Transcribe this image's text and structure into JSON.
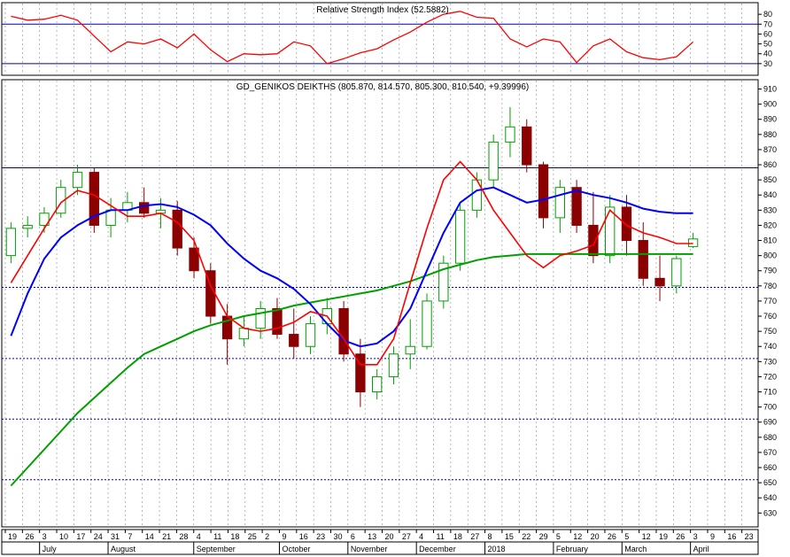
{
  "rsi_panel": {
    "title": "Relative Strength Index (52.5882)",
    "ylim": [
      20,
      90
    ],
    "yticks": [
      30,
      40,
      50,
      60,
      70,
      80
    ],
    "levels": [
      70,
      30
    ]
  },
  "price_panel": {
    "title": "GD_GENIKOS DEIKTHS (805.870, 814.570, 805.300, 810.540, +9.39996)",
    "ylim": [
      622,
      915
    ],
    "yticks": [
      630,
      640,
      650,
      660,
      670,
      680,
      690,
      700,
      710,
      720,
      730,
      740,
      750,
      760,
      770,
      780,
      790,
      800,
      810,
      820,
      830,
      840,
      850,
      860,
      870,
      880,
      890,
      900,
      910
    ],
    "levels": [
      858,
      779,
      732,
      692,
      652
    ]
  },
  "x_axis": {
    "day_labels": [
      "19",
      "26",
      "3",
      "10",
      "17",
      "24",
      "31",
      "7",
      "14",
      "21",
      "28",
      "4",
      "11",
      "18",
      "25",
      "2",
      "9",
      "16",
      "23",
      "30",
      "6",
      "13",
      "20",
      "27",
      "4",
      "11",
      "18",
      "27",
      "8",
      "15",
      "22",
      "29",
      "5",
      "12",
      "20",
      "26",
      "5",
      "12",
      "19",
      "26",
      "3",
      "9",
      "16",
      "23"
    ],
    "month_labels": [
      {
        "label": "July",
        "index": 2
      },
      {
        "label": "August",
        "index": 6
      },
      {
        "label": "September",
        "index": 11
      },
      {
        "label": "October",
        "index": 16
      },
      {
        "label": "November",
        "index": 20
      },
      {
        "label": "December",
        "index": 24
      },
      {
        "label": "2018",
        "index": 28
      },
      {
        "label": "February",
        "index": 32
      },
      {
        "label": "March",
        "index": 36
      },
      {
        "label": "April",
        "index": 40
      }
    ]
  },
  "colors": {
    "rsi": "#ff0000",
    "ma_fast": "#ff0000",
    "ma_mid": "#0000ff",
    "ma_slow": "#00a000",
    "candle_up": "#00a000",
    "candle_down": "#8b0000",
    "level_line": "#0000aa",
    "grid": "#888888"
  },
  "chart_data": [
    {
      "type": "line",
      "title": "Relative Strength Index (52.5882)",
      "x": [
        0,
        1,
        2,
        3,
        4,
        5,
        6,
        7,
        8,
        9,
        10,
        11,
        12,
        13,
        14,
        15,
        16,
        17,
        18,
        19,
        20,
        21,
        22,
        23,
        24,
        25,
        26,
        27,
        28,
        29,
        30,
        31,
        32,
        33,
        34,
        35,
        36,
        37,
        38,
        39,
        40,
        41
      ],
      "series": [
        {
          "values": [
            78,
            74,
            75,
            79,
            74,
            58,
            42,
            52,
            50,
            55,
            46,
            60,
            44,
            32,
            40,
            39,
            40,
            52,
            48,
            30,
            35,
            41,
            45,
            54,
            62,
            72,
            80,
            83,
            77,
            76,
            55,
            47,
            55,
            52,
            31,
            48,
            55,
            42,
            36,
            34,
            37,
            52
          ]
        }
      ],
      "levels": [
        70,
        30
      ],
      "ylim": [
        20,
        90
      ]
    },
    {
      "type": "line",
      "title": "GD_GENIKOS DEIKTHS (805.870, 814.570, 805.300, 810.540, +9.39996)",
      "x": [
        0,
        1,
        2,
        3,
        4,
        5,
        6,
        7,
        8,
        9,
        10,
        11,
        12,
        13,
        14,
        15,
        16,
        17,
        18,
        19,
        20,
        21,
        22,
        23,
        24,
        25,
        26,
        27,
        28,
        29,
        30,
        31,
        32,
        33,
        34,
        35,
        36,
        37,
        38,
        39,
        40,
        41
      ],
      "ylim": [
        622,
        915
      ],
      "candles": [
        [
          800,
          822,
          795,
          818
        ],
        [
          818,
          826,
          812,
          820
        ],
        [
          820,
          832,
          815,
          828
        ],
        [
          828,
          850,
          825,
          845
        ],
        [
          845,
          860,
          840,
          855
        ],
        [
          855,
          858,
          815,
          820
        ],
        [
          820,
          838,
          812,
          830
        ],
        [
          830,
          842,
          822,
          835
        ],
        [
          835,
          845,
          825,
          828
        ],
        [
          828,
          838,
          818,
          830
        ],
        [
          830,
          836,
          800,
          805
        ],
        [
          805,
          812,
          785,
          790
        ],
        [
          790,
          795,
          755,
          760
        ],
        [
          760,
          768,
          728,
          745
        ],
        [
          745,
          760,
          740,
          752
        ],
        [
          752,
          770,
          745,
          765
        ],
        [
          765,
          772,
          745,
          748
        ],
        [
          748,
          765,
          732,
          740
        ],
        [
          740,
          760,
          735,
          755
        ],
        [
          755,
          772,
          748,
          765
        ],
        [
          765,
          770,
          730,
          735
        ],
        [
          735,
          745,
          700,
          710
        ],
        [
          710,
          725,
          705,
          720
        ],
        [
          720,
          740,
          715,
          735
        ],
        [
          735,
          758,
          725,
          740
        ],
        [
          740,
          775,
          738,
          770
        ],
        [
          770,
          800,
          765,
          795
        ],
        [
          795,
          835,
          790,
          830
        ],
        [
          830,
          855,
          825,
          850
        ],
        [
          850,
          880,
          845,
          875
        ],
        [
          875,
          898,
          865,
          885
        ],
        [
          885,
          890,
          855,
          860
        ],
        [
          860,
          862,
          818,
          825
        ],
        [
          825,
          850,
          815,
          845
        ],
        [
          845,
          850,
          815,
          820
        ],
        [
          820,
          842,
          795,
          800
        ],
        [
          800,
          840,
          795,
          832
        ],
        [
          832,
          840,
          800,
          810
        ],
        [
          810,
          822,
          780,
          785
        ],
        [
          785,
          800,
          770,
          780
        ],
        [
          780,
          800,
          775,
          798
        ],
        [
          806,
          815,
          805,
          811
        ]
      ],
      "series": [
        {
          "values": [
            782,
            800,
            818,
            835,
            843,
            840,
            833,
            826,
            826,
            828,
            822,
            810,
            780,
            760,
            752,
            750,
            752,
            756,
            763,
            760,
            745,
            728,
            728,
            745,
            782,
            818,
            850,
            862,
            850,
            830,
            815,
            800,
            792,
            800,
            803,
            807,
            830,
            820,
            815,
            812,
            808,
            808
          ]
        },
        {
          "values": [
            747,
            775,
            798,
            812,
            820,
            826,
            830,
            830,
            833,
            834,
            832,
            827,
            820,
            808,
            798,
            790,
            785,
            778,
            768,
            755,
            744,
            740,
            742,
            750,
            765,
            790,
            815,
            835,
            843,
            845,
            840,
            835,
            837,
            840,
            843,
            840,
            838,
            835,
            831,
            829,
            828,
            828
          ]
        },
        {
          "values": [
            648,
            660,
            672,
            684,
            696,
            706,
            716,
            726,
            735,
            740,
            745,
            750,
            754,
            757,
            760,
            762,
            764,
            767,
            769,
            771,
            773,
            775,
            777,
            780,
            783,
            787,
            791,
            794,
            797,
            799,
            800,
            801,
            801,
            801,
            801,
            801,
            801,
            801,
            801,
            801,
            801,
            801
          ]
        }
      ],
      "levels": [
        858,
        779,
        732,
        692,
        652
      ]
    }
  ]
}
